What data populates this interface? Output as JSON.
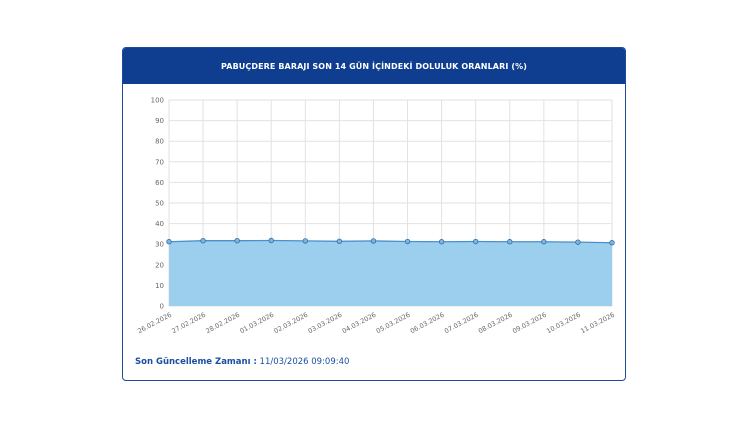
{
  "card": {
    "title": "PABUÇDERE BARAJI SON 14 GÜN İÇİNDEKİ DOLULUK ORANLARI (%)"
  },
  "update": {
    "label": "Son Güncelleme Zamanı :",
    "value": "11/03/2026 09:09:40"
  },
  "colors": {
    "header_bg": "#0f3d8f",
    "area_fill": "#9ccfee",
    "line": "#4a90c9",
    "point_fill": "#7fb4dd",
    "point_stroke": "#2f6ea8",
    "grid": "#e2e2e2",
    "label_text": "#1b4fa0"
  },
  "chart_data": {
    "type": "area",
    "categories": [
      "26.02.2026",
      "27.02.2026",
      "28.02.2026",
      "01.03.2026",
      "02.03.2026",
      "03.03.2026",
      "04.03.2026",
      "05.03.2026",
      "06.03.2026",
      "07.03.2026",
      "08.03.2026",
      "09.03.2026",
      "10.03.2026",
      "11.03.2026"
    ],
    "values": [
      31.2,
      31.7,
      31.7,
      31.8,
      31.6,
      31.4,
      31.6,
      31.3,
      31.2,
      31.3,
      31.2,
      31.2,
      31.0,
      30.7
    ],
    "yticks": [
      0,
      10,
      20,
      30,
      40,
      50,
      60,
      70,
      80,
      90,
      100
    ],
    "ylim": [
      0,
      100
    ],
    "grid": true,
    "legend": "none"
  }
}
